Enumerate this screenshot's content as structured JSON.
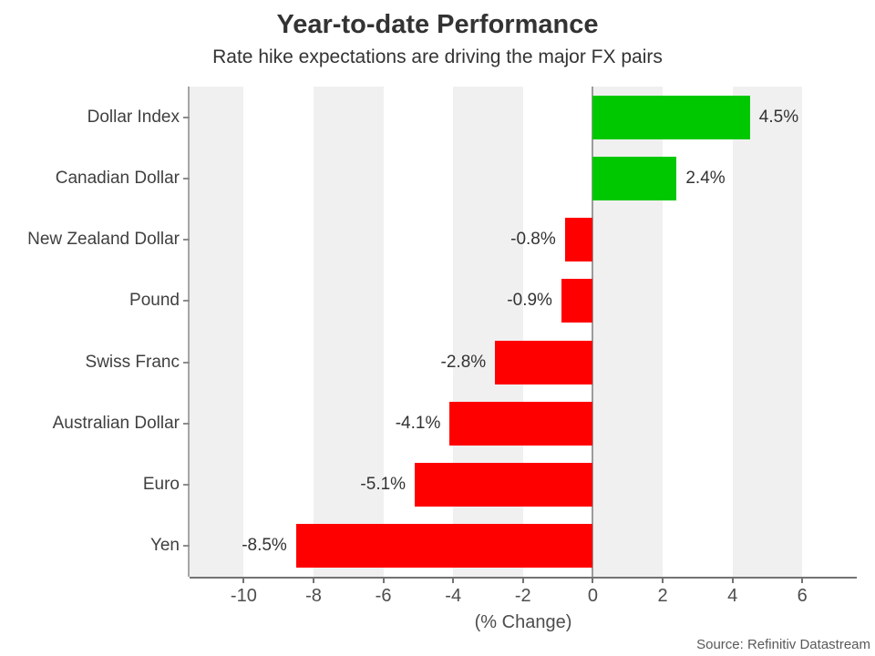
{
  "chart_data": {
    "type": "bar",
    "orientation": "horizontal",
    "title": "Year-to-date Performance",
    "subtitle": "Rate hike expectations are driving the major FX pairs",
    "xlabel": "(% Change)",
    "source": "Source: Refinitiv Datastream",
    "categories": [
      "Dollar Index",
      "Canadian Dollar",
      "New Zealand Dollar",
      "Pound",
      "Swiss Franc",
      "Australian Dollar",
      "Euro",
      "Yen"
    ],
    "values": [
      4.5,
      2.4,
      -0.8,
      -0.9,
      -2.8,
      -4.1,
      -5.1,
      -8.5
    ],
    "value_labels": [
      "4.5%",
      "2.4%",
      "-0.8%",
      "-0.9%",
      "-2.8%",
      "-4.1%",
      "-5.1%",
      "-8.5%"
    ],
    "xticks": [
      -10,
      -8,
      -6,
      -4,
      -2,
      0,
      2,
      4,
      6
    ],
    "xtick_labels": [
      "-10",
      "-8",
      "-6",
      "-4",
      "-2",
      "0",
      "2",
      "4",
      "6"
    ],
    "xlim": [
      -11.55,
      7.56
    ],
    "positive_color": "#00c800",
    "negative_color": "#ff0000",
    "band_color": "#f0f0f0",
    "grid": "alternating vertical gray bands, 2 units wide, starting at multiples of 4",
    "legend": "none"
  }
}
